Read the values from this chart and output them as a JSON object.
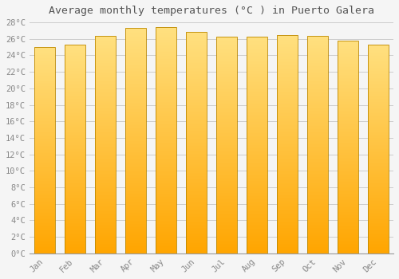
{
  "title": "Average monthly temperatures (°C ) in Puerto Galera",
  "months": [
    "Jan",
    "Feb",
    "Mar",
    "Apr",
    "May",
    "Jun",
    "Jul",
    "Aug",
    "Sep",
    "Oct",
    "Nov",
    "Dec"
  ],
  "temperatures": [
    25.0,
    25.3,
    26.4,
    27.3,
    27.4,
    26.8,
    26.3,
    26.3,
    26.5,
    26.4,
    25.8,
    25.3
  ],
  "ylim": [
    0,
    28
  ],
  "ytick_max": 28,
  "ytick_step": 2,
  "bar_color_bottom": "#FFA500",
  "bar_color_top": "#FFE080",
  "edge_color": "#BB8800",
  "background_color": "#f5f5f5",
  "grid_color": "#cccccc",
  "title_fontsize": 9.5,
  "tick_fontsize": 7.5,
  "font_family": "monospace"
}
